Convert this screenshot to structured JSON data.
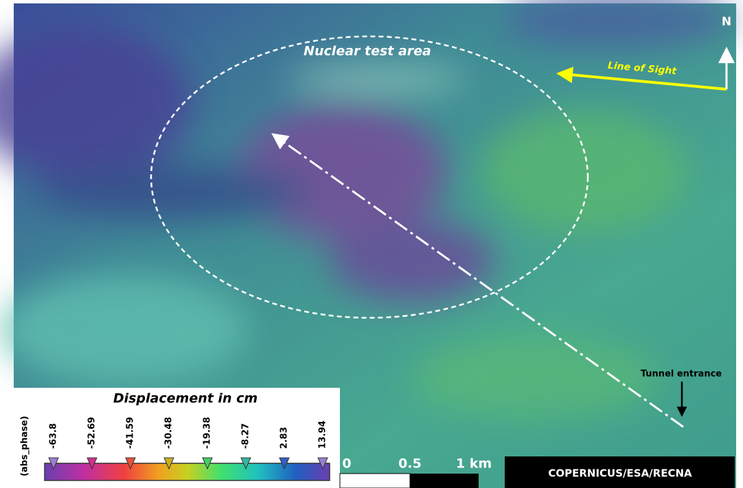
{
  "map": {
    "annotations": {
      "test_area": "Nuclear test area",
      "line_of_sight": "Line of Sight",
      "north": "N",
      "tunnel": "Tunnel entrance"
    },
    "legend": {
      "title": "Displacement in cm",
      "axis_label": "(abs_phase)",
      "ticks": [
        "-63.8",
        "-52.69",
        "-41.59",
        "-30.48",
        "-19.38",
        "-8.27",
        "2.83",
        "13.94"
      ],
      "colors": [
        "#9b7fd0",
        "#d0308a",
        "#e8503a",
        "#c8b020",
        "#40d060",
        "#30b8a0",
        "#3060c0",
        "#9b7fd0"
      ]
    },
    "scale_bar": {
      "labels": [
        "0",
        "0.5",
        "1 km"
      ]
    },
    "credit": "COPERNICUS/ESA/RECNA"
  }
}
